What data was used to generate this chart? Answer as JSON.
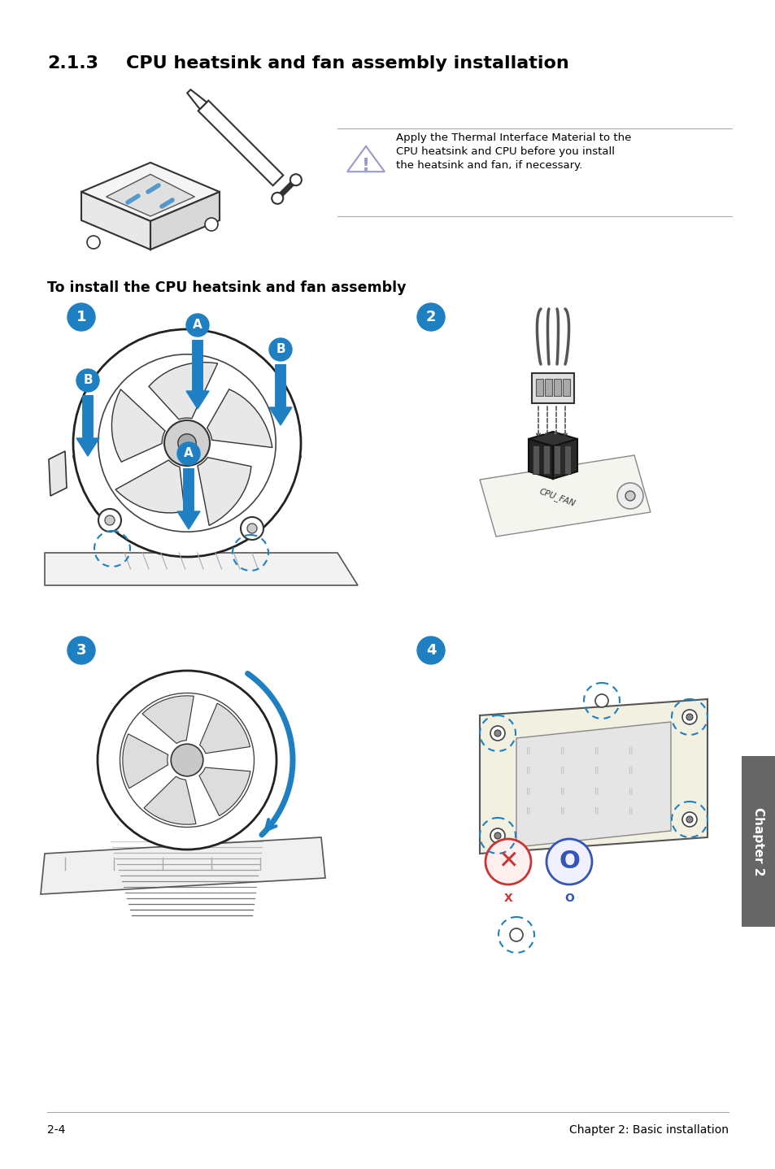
{
  "title_number": "2.1.3",
  "title_text": "CPU heatsink and fan assembly installation",
  "warning_text_line1": "Apply the Thermal Interface Material to the",
  "warning_text_line2": "CPU heatsink and CPU before you install",
  "warning_text_line3": "the heatsink and fan, if necessary.",
  "subtitle": "To install the CPU heatsink and fan assembly",
  "footer_left": "2-4",
  "footer_right": "Chapter 2: Basic installation",
  "chapter_label": "Chapter 2",
  "bg_color": "#ffffff",
  "text_color": "#000000",
  "blue_color": "#1e7fc2",
  "gray_color": "#888888",
  "tab_color": "#666666",
  "dpi": 100,
  "fig_w": 9.54,
  "fig_h": 14.38
}
